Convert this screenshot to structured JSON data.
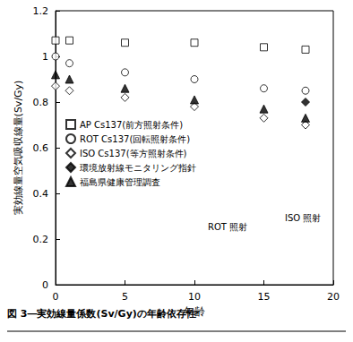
{
  "chart_data": {
    "type": "scatter",
    "caption": "図 3―実効線量係数(Sv/Gy)の年齢依存性",
    "xlabel": "年齢",
    "ylabel": "実効線量空気吸収線量(Sv/Gy)",
    "xlim": [
      0,
      20
    ],
    "xticks": [
      0,
      5,
      10,
      15,
      20
    ],
    "ylim": [
      0,
      1.2
    ],
    "yticks": [
      0,
      0.2,
      0.4,
      0.6,
      0.8,
      1,
      1.2
    ],
    "grid": false,
    "legend": "left",
    "annotations": [
      "ROT 照射",
      "ISO 照射"
    ],
    "series": [
      {
        "name": "AP Cs137(前方照射条件)",
        "color": "#000000",
        "marker": "open_square",
        "x": [
          0,
          1,
          5,
          10,
          15,
          18
        ],
        "values": [
          1.07,
          1.07,
          1.06,
          1.06,
          1.04,
          1.03
        ]
      },
      {
        "name": "ROT Cs137(回転照射条件)",
        "color": "#000000",
        "marker": "open_circle",
        "x": [
          0,
          1,
          5,
          10,
          15,
          18
        ],
        "values": [
          1.0,
          0.97,
          0.93,
          0.9,
          0.86,
          0.85
        ]
      },
      {
        "name": "ISO Cs137(等方照射条件)",
        "color": "#000000",
        "marker": "open_diamond",
        "x": [
          0,
          1,
          5,
          10,
          15,
          18
        ],
        "values": [
          0.87,
          0.85,
          0.82,
          0.78,
          0.73,
          0.7
        ]
      },
      {
        "name": "環境放射線モニタリング指針",
        "color": "#000000",
        "marker": "diamond",
        "x": [
          18
        ],
        "values": [
          0.8
        ]
      },
      {
        "name": "福島県健康管理調査",
        "color": "#000000",
        "marker": "triangle",
        "x": [
          0,
          1,
          5,
          10,
          15,
          18
        ],
        "values": [
          0.92,
          0.9,
          0.86,
          0.81,
          0.77,
          0.73
        ]
      }
    ]
  }
}
